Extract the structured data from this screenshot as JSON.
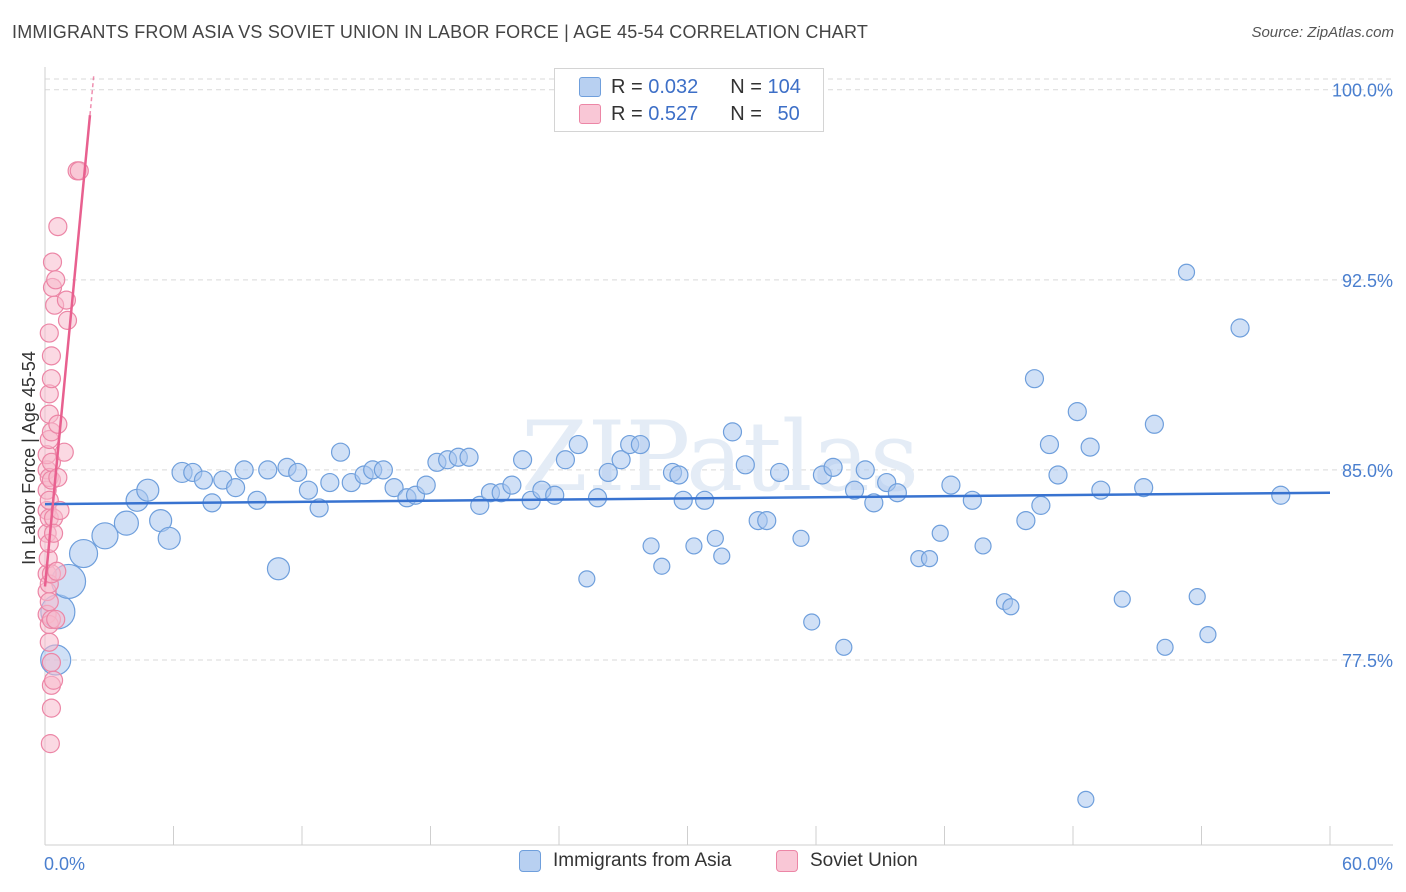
{
  "title": "IMMIGRANTS FROM ASIA VS SOVIET UNION IN LABOR FORCE | AGE 45-54 CORRELATION CHART",
  "source": "Source: ZipAtlas.com",
  "watermark": "ZIPatlas",
  "legend": {
    "rows": [
      {
        "r_label": "R =",
        "r_value": "0.032",
        "n_label": "N =",
        "n_value": "104"
      },
      {
        "r_label": "R =",
        "r_value": "0.527",
        "n_label": "N =",
        "n_value": "50"
      }
    ]
  },
  "bottom_legend": [
    "Immigrants from Asia",
    "Soviet Union"
  ],
  "colors": {
    "asia_fill": "#a9c6ee",
    "asia_stroke": "#6f9fdc",
    "asia_line": "#3873d0",
    "soviet_fill": "#f7b9cc",
    "soviet_stroke": "#ec86a6",
    "soviet_line": "#e8608f",
    "tick_text": "#4a7fcf",
    "grid": "#d9d9d9"
  },
  "chart_data": {
    "type": "scatter",
    "title": "IMMIGRANTS FROM ASIA VS SOVIET UNION IN LABOR FORCE | AGE 45-54 CORRELATION CHART",
    "xlabel": "",
    "ylabel": "In Labor Force | Age 45-54",
    "xlim": [
      0,
      60
    ],
    "ylim": [
      70.2,
      100.7
    ],
    "x_tick_labels": [
      "0.0%",
      "60.0%"
    ],
    "y_ticks": [
      77.5,
      85.0,
      92.5,
      100.0
    ],
    "y_tick_labels": [
      "77.5%",
      "85.0%",
      "92.5%",
      "100.0%"
    ],
    "series": [
      {
        "name": "Immigrants from Asia",
        "r": 0.032,
        "n": 104,
        "trend": {
          "x": [
            0,
            60
          ],
          "y": [
            83.65,
            84.1
          ]
        },
        "points": [
          [
            0.5,
            77.5,
            15
          ],
          [
            0.6,
            79.4,
            17
          ],
          [
            1.1,
            80.6,
            17
          ],
          [
            1.8,
            81.7,
            14
          ],
          [
            2.8,
            82.4,
            13
          ],
          [
            3.8,
            82.9,
            12
          ],
          [
            4.3,
            83.8,
            11
          ],
          [
            4.8,
            84.2,
            11
          ],
          [
            5.4,
            83.0,
            11
          ],
          [
            5.8,
            82.3,
            11
          ],
          [
            6.4,
            84.9,
            10
          ],
          [
            6.9,
            84.9,
            9
          ],
          [
            7.4,
            84.6,
            9
          ],
          [
            7.8,
            83.7,
            9
          ],
          [
            8.3,
            84.6,
            9
          ],
          [
            8.9,
            84.3,
            9
          ],
          [
            9.3,
            85.0,
            9
          ],
          [
            9.9,
            83.8,
            9
          ],
          [
            10.4,
            85.0,
            9
          ],
          [
            10.9,
            81.1,
            11
          ],
          [
            11.3,
            85.1,
            9
          ],
          [
            11.8,
            84.9,
            9
          ],
          [
            12.3,
            84.2,
            9
          ],
          [
            12.8,
            83.5,
            9
          ],
          [
            13.3,
            84.5,
            9
          ],
          [
            13.8,
            85.7,
            9
          ],
          [
            14.3,
            84.5,
            9
          ],
          [
            14.9,
            84.8,
            9
          ],
          [
            15.3,
            85.0,
            9
          ],
          [
            15.8,
            85.0,
            9
          ],
          [
            16.3,
            84.3,
            9
          ],
          [
            16.9,
            83.9,
            9
          ],
          [
            17.3,
            84.0,
            9
          ],
          [
            17.8,
            84.4,
            9
          ],
          [
            18.3,
            85.3,
            9
          ],
          [
            18.8,
            85.4,
            9
          ],
          [
            19.3,
            85.5,
            9
          ],
          [
            19.8,
            85.5,
            9
          ],
          [
            20.3,
            83.6,
            9
          ],
          [
            20.8,
            84.1,
            9
          ],
          [
            21.3,
            84.1,
            9
          ],
          [
            21.8,
            84.4,
            9
          ],
          [
            22.3,
            85.4,
            9
          ],
          [
            22.7,
            83.8,
            9
          ],
          [
            23.2,
            84.2,
            9
          ],
          [
            23.8,
            84.0,
            9
          ],
          [
            24.3,
            85.4,
            9
          ],
          [
            24.9,
            86.0,
            9
          ],
          [
            25.3,
            80.7,
            8
          ],
          [
            25.8,
            83.9,
            9
          ],
          [
            26.3,
            84.9,
            9
          ],
          [
            26.9,
            85.4,
            9
          ],
          [
            27.3,
            86.0,
            9
          ],
          [
            27.8,
            86.0,
            9
          ],
          [
            28.3,
            82.0,
            8
          ],
          [
            28.8,
            81.2,
            8
          ],
          [
            29.3,
            84.9,
            9
          ],
          [
            29.8,
            83.8,
            9
          ],
          [
            30.3,
            82.0,
            8
          ],
          [
            30.8,
            83.8,
            9
          ],
          [
            31.3,
            82.3,
            8
          ],
          [
            31.6,
            81.6,
            8
          ],
          [
            32.1,
            86.5,
            9
          ],
          [
            32.7,
            85.2,
            9
          ],
          [
            33.3,
            83.0,
            9
          ],
          [
            33.7,
            83.0,
            9
          ],
          [
            34.3,
            84.9,
            9
          ],
          [
            35.3,
            82.3,
            8
          ],
          [
            35.8,
            79.0,
            8
          ],
          [
            36.3,
            84.8,
            9
          ],
          [
            36.8,
            85.1,
            9
          ],
          [
            37.3,
            78.0,
            8
          ],
          [
            37.8,
            84.2,
            9
          ],
          [
            38.3,
            85.0,
            9
          ],
          [
            38.7,
            83.7,
            9
          ],
          [
            39.3,
            84.5,
            9
          ],
          [
            39.8,
            84.1,
            9
          ],
          [
            40.8,
            81.5,
            8
          ],
          [
            41.3,
            81.5,
            8
          ],
          [
            41.8,
            82.5,
            8
          ],
          [
            42.3,
            84.4,
            9
          ],
          [
            43.3,
            83.8,
            9
          ],
          [
            43.8,
            82.0,
            8
          ],
          [
            44.8,
            79.8,
            8
          ],
          [
            45.1,
            79.6,
            8
          ],
          [
            45.8,
            83.0,
            9
          ],
          [
            46.2,
            88.6,
            9
          ],
          [
            46.9,
            86.0,
            9
          ],
          [
            47.3,
            84.8,
            9
          ],
          [
            48.2,
            87.3,
            9
          ],
          [
            48.8,
            85.9,
            9
          ],
          [
            49.3,
            84.2,
            9
          ],
          [
            50.3,
            79.9,
            8
          ],
          [
            51.3,
            84.3,
            9
          ],
          [
            48.6,
            72.0,
            8
          ],
          [
            52.3,
            78.0,
            8
          ],
          [
            53.3,
            92.8,
            8
          ],
          [
            53.8,
            80.0,
            8
          ],
          [
            54.3,
            78.5,
            8
          ],
          [
            55.8,
            90.6,
            9
          ],
          [
            57.7,
            84.0,
            9
          ],
          [
            51.8,
            86.8,
            9
          ],
          [
            46.5,
            83.6,
            9
          ],
          [
            29.6,
            84.8,
            9
          ]
        ]
      },
      {
        "name": "Soviet Union",
        "r": 0.527,
        "n": 50,
        "trend": {
          "x": [
            0.0,
            2.1
          ],
          "y": [
            80.4,
            99.0
          ]
        },
        "points": [
          [
            0.1,
            79.3,
            9
          ],
          [
            0.1,
            80.2,
            9
          ],
          [
            0.1,
            80.9,
            9
          ],
          [
            0.1,
            82.5,
            9
          ],
          [
            0.1,
            83.4,
            9
          ],
          [
            0.1,
            84.2,
            9
          ],
          [
            0.1,
            85.0,
            9
          ],
          [
            0.1,
            85.6,
            9
          ],
          [
            0.15,
            81.5,
            9
          ],
          [
            0.2,
            78.2,
            9
          ],
          [
            0.2,
            78.9,
            9
          ],
          [
            0.2,
            79.8,
            9
          ],
          [
            0.2,
            80.5,
            9
          ],
          [
            0.2,
            82.1,
            9
          ],
          [
            0.2,
            83.1,
            9
          ],
          [
            0.2,
            83.8,
            9
          ],
          [
            0.2,
            84.7,
            9
          ],
          [
            0.2,
            86.2,
            9
          ],
          [
            0.2,
            87.2,
            9
          ],
          [
            0.2,
            88.0,
            9
          ],
          [
            0.2,
            90.4,
            9
          ],
          [
            0.25,
            74.2,
            9
          ],
          [
            0.3,
            75.6,
            9
          ],
          [
            0.3,
            76.5,
            9
          ],
          [
            0.3,
            77.4,
            9
          ],
          [
            0.3,
            79.1,
            9
          ],
          [
            0.3,
            80.9,
            9
          ],
          [
            0.3,
            84.6,
            9
          ],
          [
            0.3,
            85.3,
            9
          ],
          [
            0.3,
            86.5,
            9
          ],
          [
            0.3,
            88.6,
            9
          ],
          [
            0.3,
            89.5,
            9
          ],
          [
            0.35,
            92.2,
            9
          ],
          [
            0.35,
            93.2,
            9
          ],
          [
            0.4,
            76.7,
            9
          ],
          [
            0.4,
            83.1,
            9
          ],
          [
            0.4,
            82.5,
            9
          ],
          [
            0.45,
            91.5,
            9
          ],
          [
            0.5,
            92.5,
            9
          ],
          [
            0.5,
            79.1,
            9
          ],
          [
            0.55,
            81.0,
            9
          ],
          [
            0.6,
            84.7,
            9
          ],
          [
            0.6,
            86.8,
            9
          ],
          [
            0.7,
            83.4,
            9
          ],
          [
            0.6,
            94.6,
            9
          ],
          [
            1.0,
            91.7,
            9
          ],
          [
            1.05,
            90.9,
            9
          ],
          [
            0.9,
            85.7,
            9
          ],
          [
            1.5,
            96.8,
            9
          ],
          [
            1.6,
            96.8,
            9
          ]
        ]
      }
    ]
  }
}
